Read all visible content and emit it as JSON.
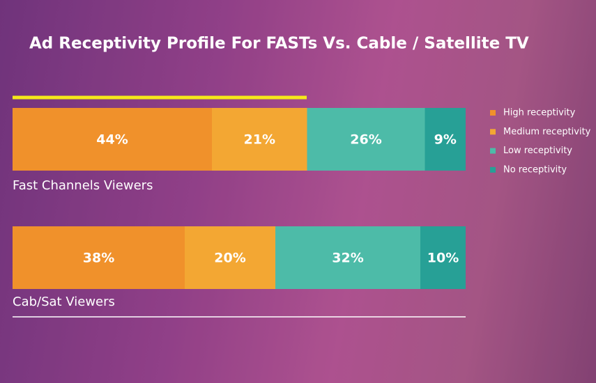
{
  "chart_data": {
    "type": "bar",
    "title": "Ad Receptivity Profile For FASTs Vs. Cable / Satellite TV",
    "categories": [
      "Fast Channels Viewers",
      "Cab/Sat Viewers"
    ],
    "series": [
      {
        "name": "High receptivity",
        "color": "#f0912b",
        "values": [
          44,
          38
        ],
        "value_labels": [
          "44%",
          "38%"
        ]
      },
      {
        "name": "Medium receptivity",
        "color": "#f3a733",
        "values": [
          21,
          20
        ],
        "value_labels": [
          "21%",
          "20%"
        ]
      },
      {
        "name": "Low receptivity",
        "color": "#4dbba8",
        "values": [
          26,
          32
        ],
        "value_labels": [
          "26%",
          "32%"
        ]
      },
      {
        "name": "No receptivity",
        "color": "#27a096",
        "values": [
          9,
          10
        ],
        "value_labels": [
          "9%",
          "10%"
        ]
      }
    ]
  }
}
